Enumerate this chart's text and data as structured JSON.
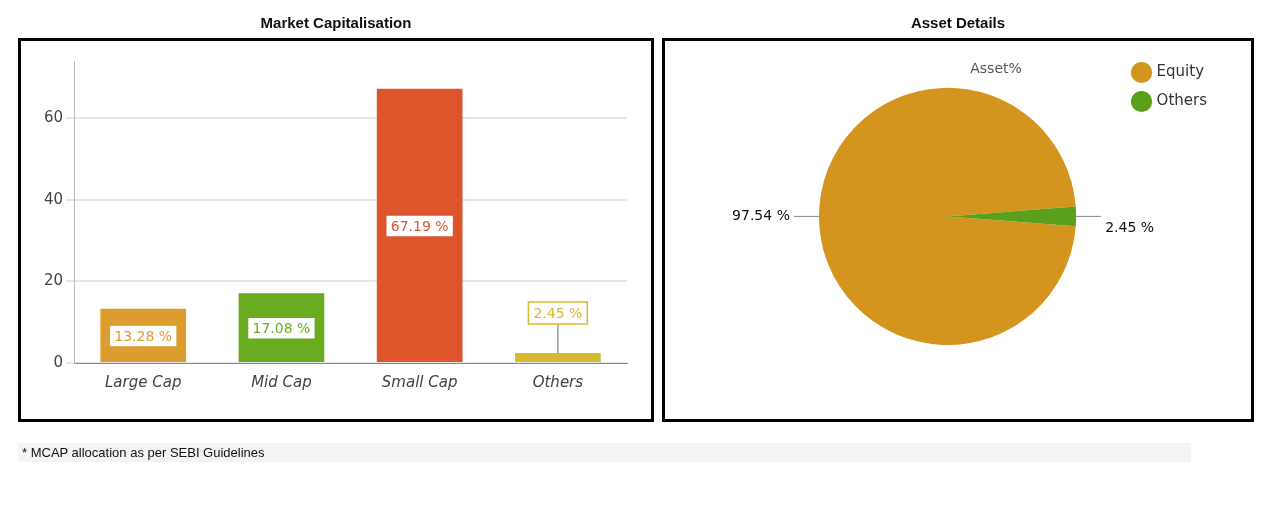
{
  "chart_data": [
    {
      "type": "bar",
      "title": "Market Capitalisation",
      "categories": [
        "Large Cap",
        "Mid Cap",
        "Small Cap",
        "Others"
      ],
      "values": [
        13.28,
        17.08,
        67.19,
        2.45
      ],
      "colors": [
        "#dc9c2e",
        "#6aab1f",
        "#dc552b",
        "#d6bb30"
      ],
      "value_labels": [
        "13.28 %",
        "17.08 %",
        "67.19 %",
        "2.45 %"
      ],
      "ylim": [
        0,
        74
      ],
      "yticks": [
        0,
        20,
        40,
        60
      ],
      "grid": "y",
      "legend": false,
      "annotations": [
        "* MCAP allocation as per SEBI Guidelines"
      ]
    },
    {
      "type": "pie",
      "title": "Asset Details",
      "subtitle": "Asset%",
      "categories": [
        "Equity",
        "Others"
      ],
      "values": [
        97.54,
        2.45
      ],
      "colors": [
        "#d4951f",
        "#5aa01a"
      ],
      "value_labels": [
        "97.54 %",
        "2.45 %"
      ],
      "legend": "top right"
    }
  ]
}
